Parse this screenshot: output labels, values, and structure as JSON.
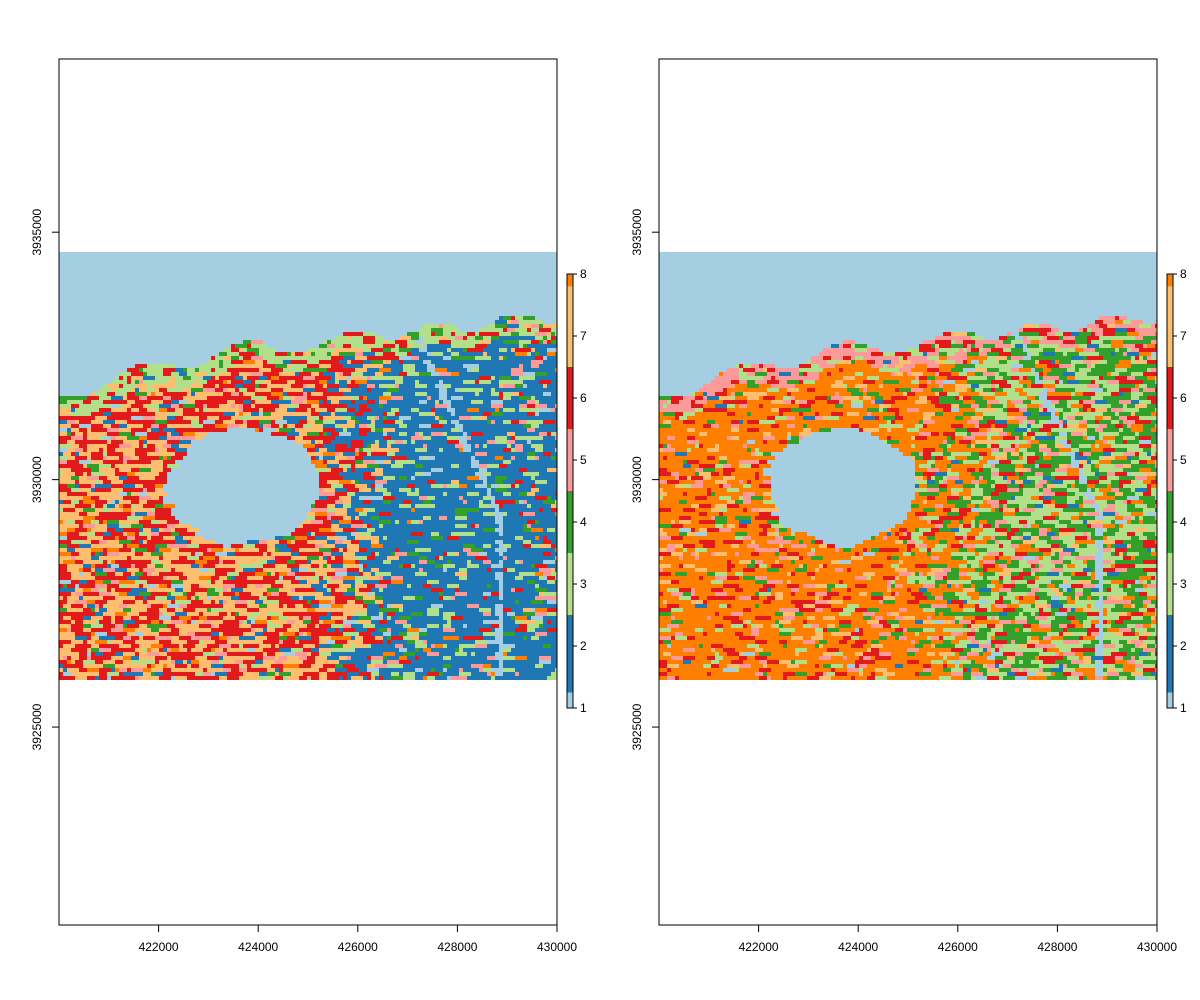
{
  "maps": [
    {
      "x_ticks": [
        "422000",
        "424000",
        "426000",
        "428000",
        "430000"
      ],
      "y_ticks": [
        "3925000",
        "3930000",
        "3935000"
      ],
      "legend": {
        "ticks": [
          "1",
          "2",
          "3",
          "4",
          "5",
          "6",
          "7",
          "8"
        ]
      },
      "palette": [
        "#a6cee3",
        "#1f78b4",
        "#b2df8a",
        "#33a02c",
        "#fb9a99",
        "#e31a1c",
        "#fdbf6f",
        "#ff7f00"
      ],
      "class_weights": {
        "inland_west": {
          "1": 0.02,
          "2": 0.07,
          "3": 0.05,
          "4": 0.04,
          "5": 0.05,
          "6": 0.38,
          "7": 0.34,
          "8": 0.05
        },
        "inland_east": {
          "1": 0.03,
          "2": 0.66,
          "3": 0.12,
          "4": 0.05,
          "5": 0.05,
          "6": 0.05,
          "7": 0.02,
          "8": 0.02
        },
        "coast_strip": {
          "1": 0.0,
          "2": 0.06,
          "3": 0.48,
          "4": 0.12,
          "5": 0.04,
          "6": 0.22,
          "7": 0.08,
          "8": 0.0
        }
      }
    },
    {
      "x_ticks": [
        "422000",
        "424000",
        "426000",
        "428000",
        "430000"
      ],
      "y_ticks": [
        "3925000",
        "3930000",
        "3935000"
      ],
      "legend": {
        "ticks": [
          "1",
          "2",
          "3",
          "4",
          "5",
          "6",
          "7",
          "8"
        ]
      },
      "palette": [
        "#a6cee3",
        "#1f78b4",
        "#b2df8a",
        "#33a02c",
        "#fb9a99",
        "#e31a1c",
        "#fdbf6f",
        "#ff7f00"
      ],
      "class_weights": {
        "inland_west": {
          "1": 0.01,
          "2": 0.01,
          "3": 0.05,
          "4": 0.06,
          "5": 0.08,
          "6": 0.12,
          "7": 0.07,
          "8": 0.6
        },
        "inland_east": {
          "1": 0.02,
          "2": 0.04,
          "3": 0.28,
          "4": 0.32,
          "5": 0.1,
          "6": 0.1,
          "7": 0.04,
          "8": 0.1
        },
        "coast_strip": {
          "1": 0.0,
          "2": 0.02,
          "3": 0.18,
          "4": 0.1,
          "5": 0.45,
          "6": 0.2,
          "7": 0.03,
          "8": 0.02
        }
      }
    }
  ],
  "chart_data": [
    {
      "type": "heatmap",
      "x_range": [
        420000,
        430000
      ],
      "y_range": [
        3921000,
        3938500
      ],
      "raster_extent": {
        "x": [
          420000,
          430000
        ],
        "y": [
          3926000,
          3934600
        ]
      },
      "lake_center": [
        423600,
        3929900
      ],
      "value_range": [
        1,
        8
      ],
      "x_tick_values": [
        422000,
        424000,
        426000,
        428000,
        430000
      ],
      "y_tick_values": [
        3925000,
        3930000,
        3935000
      ]
    },
    {
      "type": "heatmap",
      "x_range": [
        420000,
        430000
      ],
      "y_range": [
        3921000,
        3938500
      ],
      "raster_extent": {
        "x": [
          420000,
          430000
        ],
        "y": [
          3926000,
          3934600
        ]
      },
      "lake_center": [
        423600,
        3929900
      ],
      "value_range": [
        1,
        8
      ],
      "x_tick_values": [
        422000,
        424000,
        426000,
        428000,
        430000
      ],
      "y_tick_values": [
        3925000,
        3930000,
        3935000
      ]
    }
  ]
}
